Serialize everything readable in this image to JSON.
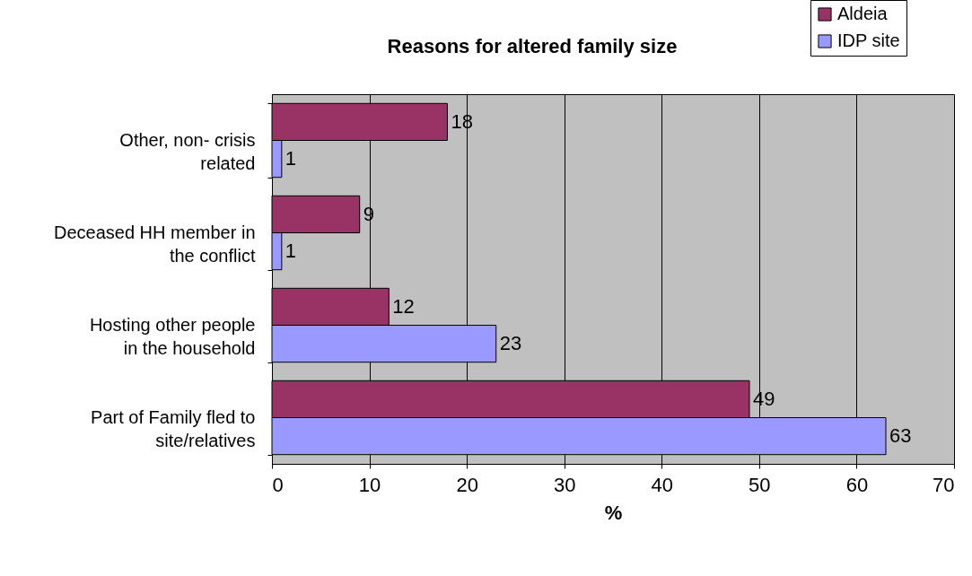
{
  "chart_data": {
    "type": "bar",
    "orientation": "horizontal",
    "title": "Reasons for altered family size",
    "xlabel": "%",
    "categories": [
      "Other, non- crisis related",
      "Deceased HH member in the conflict",
      "Hosting other people in the household",
      "Part of Family fled to site/relatives"
    ],
    "series": [
      {
        "name": "Aldeia",
        "color": "#993366",
        "values": [
          18,
          9,
          12,
          49
        ]
      },
      {
        "name": "IDP site",
        "color": "#9999ff",
        "values": [
          1,
          1,
          23,
          63
        ]
      }
    ],
    "xlim": [
      0,
      70
    ],
    "xticks": [
      0,
      10,
      20,
      30,
      40,
      50,
      60,
      70
    ],
    "grid": "x",
    "legend": "top right",
    "data_labels": true
  }
}
